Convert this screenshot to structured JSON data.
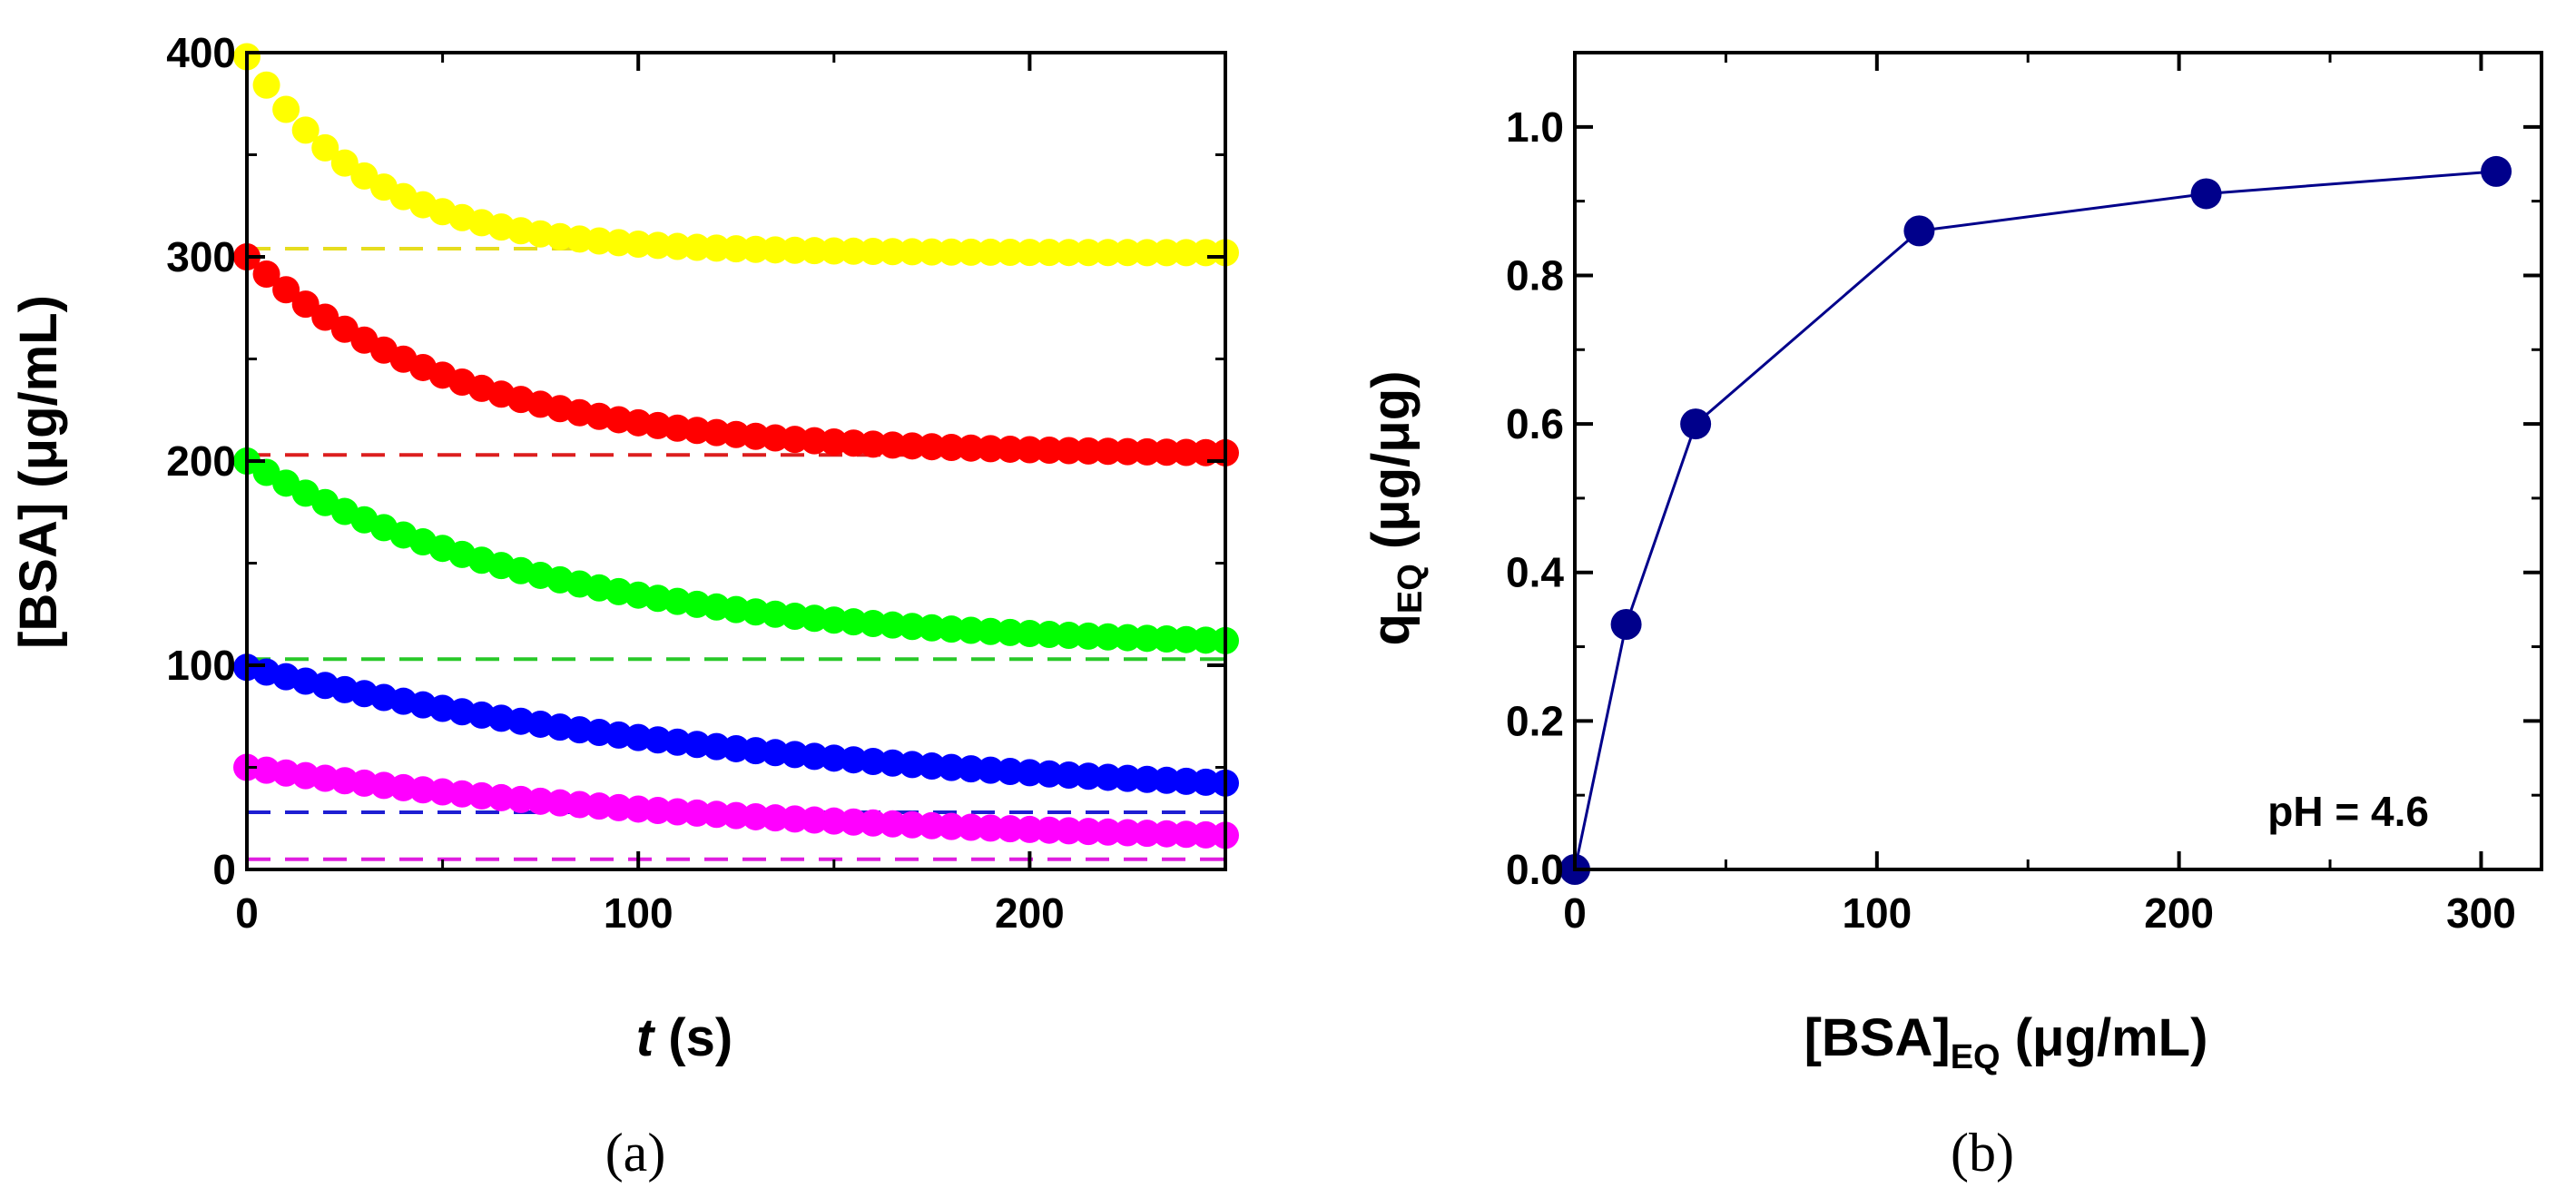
{
  "chart_data": [
    {
      "type": "scatter",
      "panel_label": "a",
      "title": "",
      "xlabel": {
        "italic": "t",
        "rest": " (s)"
      },
      "ylabel": "[BSA] (μg/mL)",
      "xlim": [
        0,
        250
      ],
      "ylim": [
        0,
        400
      ],
      "xticks": [
        0,
        100,
        200
      ],
      "yticks": [
        0,
        100,
        200,
        300,
        400
      ],
      "x_minor_step": 50,
      "y_minor_step": 50,
      "grid": false,
      "time": {
        "start": 0,
        "end": 250,
        "step": 5
      },
      "series": [
        {
          "name": "yellow",
          "color": "#ffff00",
          "dash_color": "#e6dc1e",
          "start": 398,
          "equilibrium": 302,
          "tau": 32,
          "dashed_equilibrium": 304
        },
        {
          "name": "red",
          "color": "#ff0000",
          "dash_color": "#dc1e1e",
          "start": 300,
          "equilibrium": 203,
          "tau": 55,
          "dashed_equilibrium": 203
        },
        {
          "name": "green",
          "color": "#00ff00",
          "dash_color": "#28c828",
          "start": 200,
          "equilibrium": 108,
          "tau": 80,
          "dashed_equilibrium": 103
        },
        {
          "name": "blue",
          "color": "#0000ff",
          "dash_color": "#1e1ed2",
          "start": 99,
          "equilibrium": 30,
          "tau": 145,
          "dashed_equilibrium": 28
        },
        {
          "name": "magenta",
          "color": "#ff00ff",
          "dash_color": "#e01ee0",
          "start": 50,
          "equilibrium": 10,
          "tau": 140,
          "dashed_equilibrium": 5
        }
      ]
    },
    {
      "type": "line",
      "panel_label": "b",
      "title": "",
      "xlabel": {
        "main": "[BSA]",
        "sub": "EQ",
        "rest": " (μg/mL)"
      },
      "ylabel": {
        "main": "q",
        "sub": "EQ",
        "rest": " (μg/μg)"
      },
      "xlim": [
        0,
        320
      ],
      "ylim": [
        0,
        1.1
      ],
      "xticks": [
        0,
        100,
        200,
        300
      ],
      "yticks": [
        0.0,
        0.2,
        0.4,
        0.6,
        0.8,
        1.0
      ],
      "ytick_labels": [
        "0.0",
        "0.2",
        "0.4",
        "0.6",
        "0.8",
        "1.0"
      ],
      "x_minor_step": 50,
      "y_minor_step": 0.1,
      "grid": false,
      "annotation": "pH = 4.6",
      "color": "#00008b",
      "x": [
        0,
        17,
        40,
        114,
        209,
        305
      ],
      "y": [
        0.0,
        0.33,
        0.6,
        0.86,
        0.91,
        0.94
      ]
    }
  ],
  "captions": {
    "a": "(a)",
    "b": "(b)"
  }
}
